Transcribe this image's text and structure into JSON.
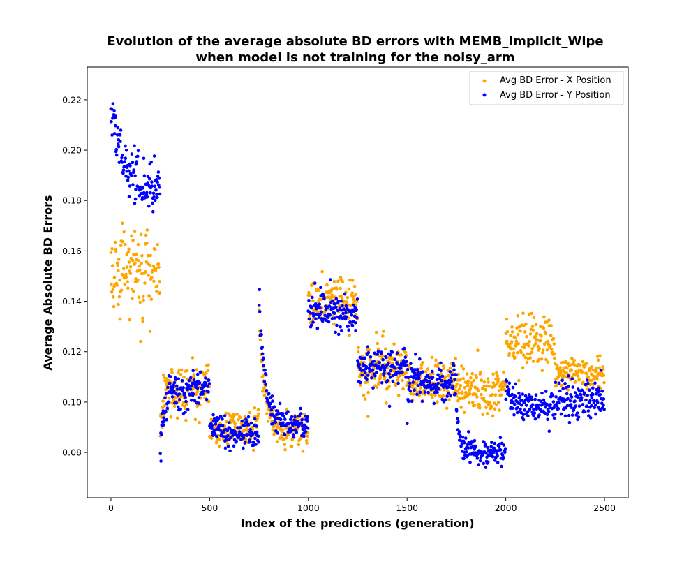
{
  "chart_data": {
    "type": "scatter",
    "title_lines": [
      "Evolution of the average absolute BD errors with MEMB_Implicit_Wipe",
      "when model is not training for the noisy_arm"
    ],
    "xlabel": "Index of the predictions (generation)",
    "ylabel": "Average Absolute BD Errors",
    "xlim": [
      -120,
      2620
    ],
    "ylim": [
      0.062,
      0.233
    ],
    "x_ticks": [
      0,
      500,
      1000,
      1500,
      2000,
      2500
    ],
    "y_ticks": [
      0.08,
      0.1,
      0.12,
      0.14,
      0.16,
      0.18,
      0.2,
      0.22
    ],
    "y_tick_labels": [
      "0.08",
      "0.10",
      "0.12",
      "0.14",
      "0.16",
      "0.18",
      "0.20",
      "0.22"
    ],
    "legend_position": "top-right",
    "grid": false,
    "series": [
      {
        "name": "Avg BD Error - X Position",
        "color": "#ffa500",
        "segments": [
          {
            "x_start": 0,
            "x_end": 249,
            "start": 0.152,
            "end": 0.152,
            "spread": 0.008
          },
          {
            "x_start": 250,
            "x_end": 499,
            "start": 0.09,
            "end": 0.106,
            "tau": 20,
            "spread": 0.005
          },
          {
            "x_start": 500,
            "x_end": 749,
            "start": 0.09,
            "end": 0.09,
            "spread": 0.0035
          },
          {
            "x_start": 750,
            "x_end": 999,
            "start": 0.135,
            "end": 0.088,
            "tau": 28,
            "spread": 0.0035
          },
          {
            "x_start": 1000,
            "x_end": 1249,
            "start": 0.14,
            "end": 0.14,
            "spread": 0.005
          },
          {
            "x_start": 1250,
            "x_end": 1499,
            "start": 0.113,
            "end": 0.113,
            "spread": 0.005
          },
          {
            "x_start": 1500,
            "x_end": 1749,
            "start": 0.108,
            "end": 0.108,
            "spread": 0.004
          },
          {
            "x_start": 1750,
            "x_end": 1999,
            "start": 0.105,
            "end": 0.105,
            "spread": 0.004
          },
          {
            "x_start": 2000,
            "x_end": 2249,
            "start": 0.124,
            "end": 0.124,
            "spread": 0.005
          },
          {
            "x_start": 2250,
            "x_end": 2499,
            "start": 0.111,
            "end": 0.111,
            "spread": 0.003
          }
        ]
      },
      {
        "name": "Avg BD Error - Y Position",
        "color": "#0000ff",
        "segments": [
          {
            "x_start": 0,
            "x_end": 249,
            "start": 0.215,
            "end": 0.184,
            "tau": 60,
            "spread": 0.005
          },
          {
            "x_start": 250,
            "x_end": 499,
            "start": 0.082,
            "end": 0.105,
            "tau": 18,
            "spread": 0.0035
          },
          {
            "x_start": 500,
            "x_end": 749,
            "start": 0.09,
            "end": 0.087,
            "tau": 100,
            "spread": 0.003
          },
          {
            "x_start": 750,
            "x_end": 999,
            "start": 0.14,
            "end": 0.091,
            "tau": 30,
            "spread": 0.003
          },
          {
            "x_start": 1000,
            "x_end": 1249,
            "start": 0.138,
            "end": 0.134,
            "tau": 100,
            "spread": 0.004
          },
          {
            "x_start": 1250,
            "x_end": 1499,
            "start": 0.114,
            "end": 0.114,
            "spread": 0.004
          },
          {
            "x_start": 1500,
            "x_end": 1749,
            "start": 0.108,
            "end": 0.108,
            "spread": 0.004
          },
          {
            "x_start": 1750,
            "x_end": 1999,
            "start": 0.1,
            "end": 0.08,
            "tau": 15,
            "spread": 0.0025
          },
          {
            "x_start": 2000,
            "x_end": 2249,
            "start": 0.105,
            "end": 0.098,
            "tau": 40,
            "spread": 0.003
          },
          {
            "x_start": 2250,
            "x_end": 2499,
            "start": 0.101,
            "end": 0.101,
            "spread": 0.004
          }
        ]
      }
    ]
  }
}
